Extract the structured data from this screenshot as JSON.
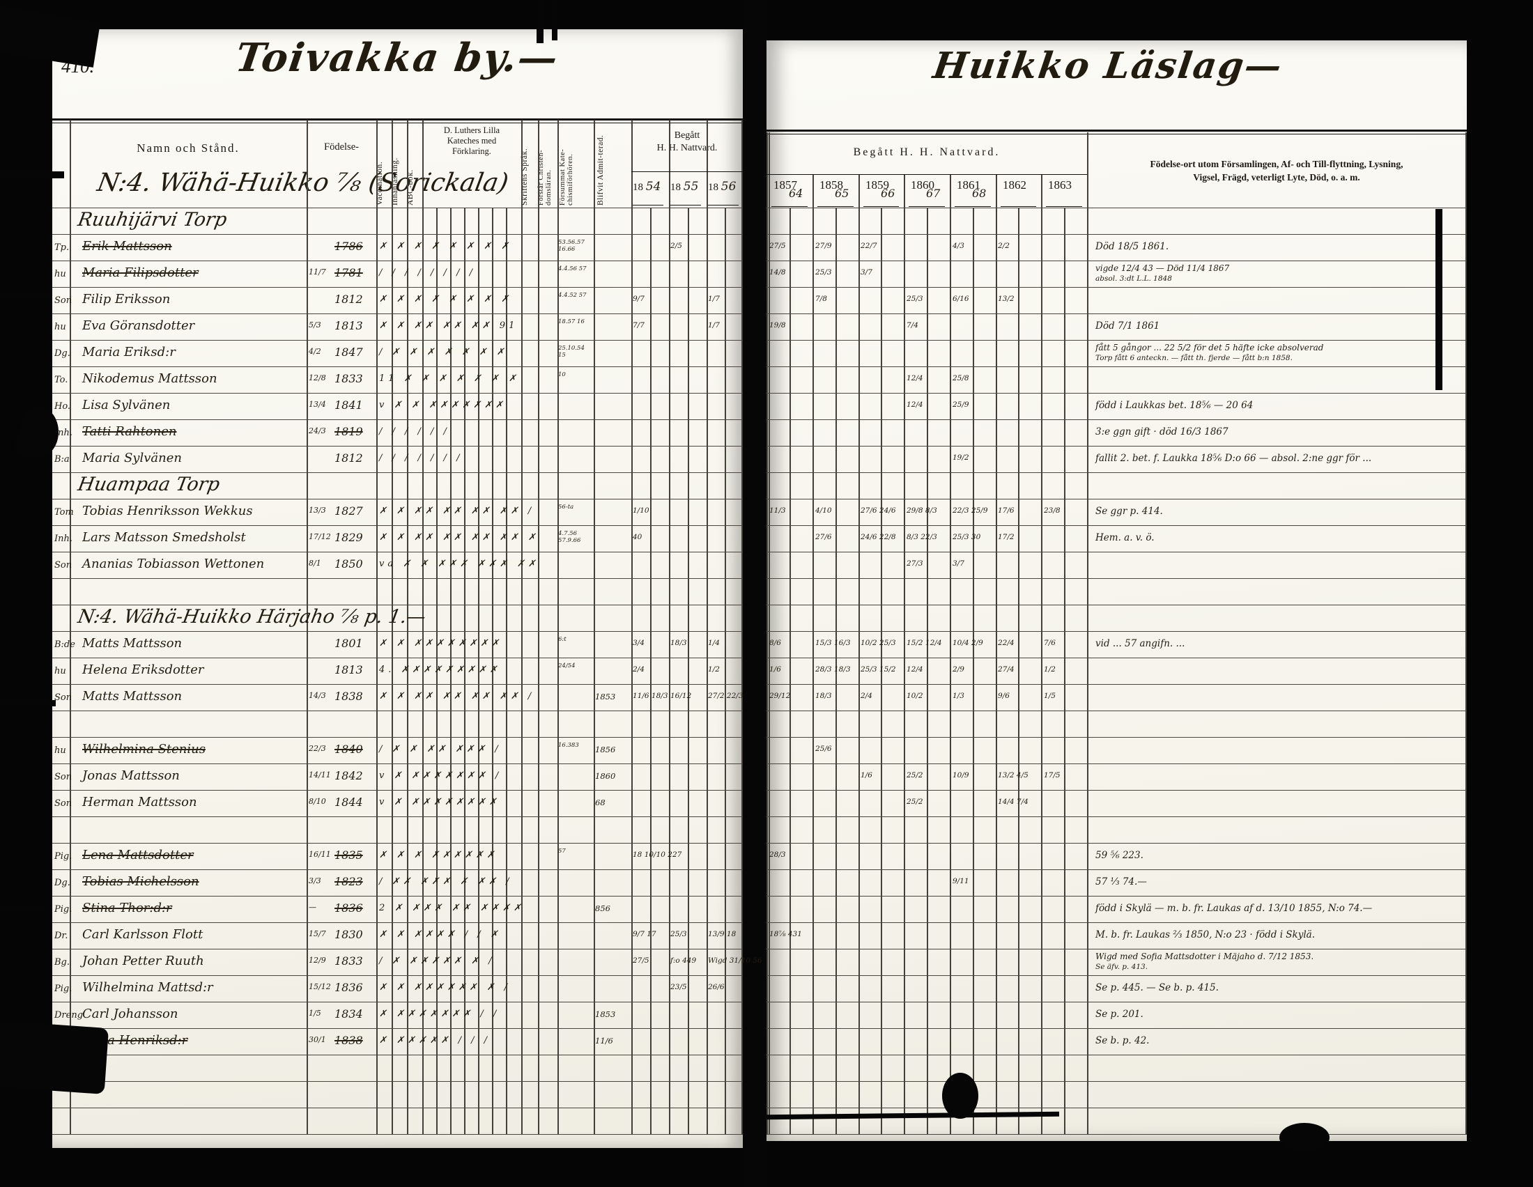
{
  "scan": {
    "page_number": "410.",
    "left_title": "Toivakka by.—",
    "right_title": "Huikko Läslag—",
    "left_section_title": "N:4. Wähä-Huikko ⅞ (Sorickala)"
  },
  "headers": {
    "left": {
      "name": "Namn och Stånd.",
      "birth": "Födelse-",
      "vertical": [
        "Vaccination.",
        "Innanläsning.",
        "ABC-bok."
      ],
      "catechism_lines": [
        "D. Luthers Lilla",
        "Kateches med",
        "Förklaring."
      ],
      "vertical2": [
        "Skriftens Språk.",
        "Förstår Christen-domsläran.",
        "Försummat Kate-chismiförhören.",
        "Blifvit Admit-terad."
      ],
      "communion_line1": "Begått",
      "communion_line2": "H. H. Nattvard.",
      "years": [
        {
          "printed": "18",
          "written": "54"
        },
        {
          "printed": "18",
          "written": "55"
        },
        {
          "printed": "18",
          "written": "56"
        }
      ]
    },
    "right": {
      "communion": "Begått  H.  H.  Nattvard.",
      "years": [
        {
          "printed": "1857",
          "written": "64"
        },
        {
          "printed": "1858",
          "written": "65"
        },
        {
          "printed": "1859",
          "written": "66"
        },
        {
          "printed": "1860",
          "written": "67"
        },
        {
          "printed": "1861",
          "written": "68"
        },
        {
          "printed": "1862",
          "written": ""
        },
        {
          "printed": "1863",
          "written": ""
        }
      ],
      "notes_line1": "Födelse-ort utom Församlingen, Af- och Till-flyttning, Lysning,",
      "notes_line2": "Vigsel, Frägd, veterligt Lyte, Död, o. a. m."
    }
  },
  "rows": [
    {
      "type": "section",
      "text": "Ruuhijärvi Torp"
    },
    {
      "type": "person",
      "prefix": "Tp.",
      "name": "Erik Mattsson",
      "struck": true,
      "by": "1786",
      "marks": "✗ ✗ ✗ ✗ ✗ ✗ ✗ ✗",
      "fors": "53.56.57 16.66",
      "n55": "2/5",
      "natt": [
        "27/5",
        "27/9",
        "22/7",
        "",
        "4/3",
        "2/2",
        ""
      ],
      "note": "Död 18/5 1861."
    },
    {
      "type": "person",
      "prefix": "hu",
      "name": "Maria Filipsdotter",
      "struck": true,
      "bd": "11/7",
      "by": "1781",
      "marks": "/ / / / / / / /",
      "fors": "4.4.56 57",
      "natt": [
        "14/8",
        "25/3",
        "3/7",
        "",
        "",
        "",
        ""
      ],
      "note": "vigde 12/4 43 — Död 11/4 1867",
      "note2": "absol. 3:dt L.L. 1848"
    },
    {
      "type": "person",
      "prefix": "Son",
      "name": "Filip Eriksson",
      "by": "1812",
      "marks": "✗ ✗ ✗ ✗ ✗ ✗ ✗ ✗",
      "fors": "4.4.52 57",
      "n54": "9/7",
      "n56": "1/7",
      "natt": [
        "",
        "7/8",
        "",
        "25/3",
        "6/16",
        "13/2",
        ""
      ]
    },
    {
      "type": "person",
      "prefix": "hu",
      "name": "Eva Göransdotter",
      "bd": "5/3",
      "by": "1813",
      "marks": "✗ ✗ ✗✗ ✗✗ ✗✗ 91",
      "fors": "18.57 16",
      "n54": "7/7",
      "n56": "1/7",
      "natt": [
        "19/8",
        "",
        "",
        "7/4",
        "",
        "",
        ""
      ],
      "note": "Död 7/1 1861"
    },
    {
      "type": "person",
      "prefix": "Dg.",
      "name": "Maria Eriksd:r",
      "bd": "4/2",
      "by": "1847",
      "marks": "/ ✗ ✗ ✗ ✗ ✗ ✗ ✗",
      "fors": "25.10.54 15",
      "note": "fått 5 gångor ... 22 5/2 för det 5 häfte icke absolverad",
      "note2": "Torp fått 6 anteckn. — fått th. fjerde — fått b:n 1858."
    },
    {
      "type": "person",
      "prefix": "To.",
      "name": "Nikodemus Mattsson",
      "bd": "12/8",
      "by": "1833",
      "marks": "11 ✗ ✗ ✗ ✗ ✗ ✗ ✗",
      "fors": "10",
      "natt": [
        "",
        "",
        "",
        "12/4",
        "25/8",
        "",
        ""
      ]
    },
    {
      "type": "person",
      "prefix": "Ho.",
      "name": "Lisa Sylvänen",
      "bd": "13/4",
      "by": "1841",
      "marks": "v ✗ ✗ ✗✗✗✗✗✗✗",
      "natt": [
        "",
        "",
        "",
        "12/4",
        "25/9",
        "",
        ""
      ],
      "note": "född i Laukkas bet. 18⅚ — 20 64"
    },
    {
      "type": "person",
      "prefix": "Inh.",
      "name": "Tatti Rahtonen",
      "struck": true,
      "bd": "24/3",
      "by": "1819",
      "marks": "/ / / / / /",
      "note": "3:e ggn gift · död 16/3 1867"
    },
    {
      "type": "person",
      "prefix": "B:a",
      "name": "Maria Sylvänen",
      "by": "1812",
      "marks": "/ / / / / / /",
      "natt": [
        "",
        "",
        "",
        "",
        "19/2",
        "",
        ""
      ],
      "note": "fallit 2. bet. f. Laukka 18⅚ D:o 66 — absol. 2:ne ggr för ..."
    },
    {
      "type": "section",
      "text": "Huampaa Torp"
    },
    {
      "type": "person",
      "prefix": "Tom",
      "name": "Tobias Henriksson Wekkus",
      "bd": "13/3",
      "by": "1827",
      "marks": "✗ ✗ ✗✗ ✗✗ ✗✗ ✗✗ /",
      "fors": "56-ta",
      "n54": "1/10",
      "natt": [
        "11/3",
        "4/10",
        "27/6 24/6",
        "29/8 8/3",
        "22/3 25/9",
        "17/6",
        "23/8"
      ],
      "note": "Se ggr p. 414."
    },
    {
      "type": "person",
      "prefix": "Inh.",
      "name": "Lars Matsson Smedsholst",
      "bd": "17/12",
      "by": "1829",
      "marks": "✗ ✗ ✗✗ ✗✗ ✗✗ ✗✗ ✗",
      "fors": "4.7.56 57.9.66",
      "n54": "40",
      "natt": [
        "",
        "27/6",
        "24/6 22/8",
        "8/3 22/3",
        "25/3 30",
        "17/2",
        ""
      ],
      "note": "Hem. a. v. ö."
    },
    {
      "type": "person",
      "prefix": "Son",
      "name": "Ananias Tobiasson Wettonen",
      "bd": "8/1",
      "by": "1850",
      "marks": "va ✗ ✗ ✗✗✗ ✗✗✗ ✗✗",
      "natt": [
        "",
        "",
        "",
        "27/3",
        "3/7",
        "",
        ""
      ]
    },
    {
      "type": "blank"
    },
    {
      "type": "section",
      "text": "N:4. Wähä-Huikko Härjaho ⅞ p. 1.—"
    },
    {
      "type": "person",
      "prefix": "B:de",
      "name": "Matts Mattsson",
      "by": "1801",
      "marks": "✗ ✗ ✗✗✗✗✗✗✗✗",
      "fors": "6:t",
      "n54": "3/4",
      "n55": "18/3",
      "n56": "1/4",
      "natt": [
        "8/6",
        "15/3 16/3",
        "10/2 25/3",
        "15/2 12/4",
        "10/4 2/9",
        "22/4",
        "7/6"
      ],
      "note": "vid ... 57 angifn. ..."
    },
    {
      "type": "person",
      "prefix": "hu",
      "name": "Helena Eriksdotter",
      "by": "1813",
      "marks": "4. ✗✗✗✗✗✗✗✗✗",
      "fors": "24/54",
      "n54": "2/4",
      "n56": "1/2",
      "natt": [
        "1/6",
        "28/3 18/3",
        "25/3 15/2",
        "12/4",
        "2/9",
        "27/4",
        "1/2"
      ]
    },
    {
      "type": "person",
      "prefix": "Son",
      "name": "Matts Mattsson",
      "bd": "14/3",
      "by": "1838",
      "marks": "✗ ✗ ✗✗ ✗✗ ✗✗ ✗✗ /",
      "adm": "1853",
      "n54": "11/6 18/3",
      "n55": "16/12",
      "n56": "27/2 22/3",
      "natt": [
        "29/12",
        "18/3",
        "2/4",
        "10/2",
        "1/3",
        "9/6",
        "1/5"
      ]
    },
    {
      "type": "blank"
    },
    {
      "type": "person",
      "prefix": "hu",
      "name": "Wilhelmina Stenius",
      "struck": true,
      "bd": "22/3",
      "by": "1840",
      "marks": "/ ✗ ✗ ✗✗ ✗✗✗ /",
      "fors": "16.383",
      "adm": "1856",
      "natt": [
        "",
        "25/6",
        "",
        "",
        "",
        "",
        ""
      ]
    },
    {
      "type": "person",
      "prefix": "Son",
      "name": "Jonas Mattsson",
      "bd": "14/11",
      "by": "1842",
      "marks": "v ✗ ✗✗✗✗✗✗✗ /",
      "adm": "1860",
      "natt": [
        "",
        "",
        "1/6",
        "25/2",
        "10/9",
        "13/2 4/5",
        "17/5"
      ]
    },
    {
      "type": "person",
      "prefix": "Son",
      "name": "Herman Mattsson",
      "bd": "8/10",
      "by": "1844",
      "marks": "v ✗ ✗✗✗✗✗✗✗✗",
      "adm": "68",
      "natt": [
        "",
        "",
        "",
        "25/2",
        "",
        "14/4 7/4",
        ""
      ]
    },
    {
      "type": "blank"
    },
    {
      "type": "person",
      "prefix": "Pig.",
      "name": "Lena Mattsdotter",
      "struck": true,
      "bd": "16/11",
      "by": "1835",
      "marks": "✗ ✗ ✗ ✗✗✗✗✗✗",
      "fors": "57",
      "n54": "18 10/10 227",
      "natt": [
        "28/3",
        "",
        "",
        "",
        "",
        "",
        ""
      ],
      "note": "59 ⅚ 223."
    },
    {
      "type": "person",
      "prefix": "Dg.",
      "name": "Tobias Michelsson",
      "struck": true,
      "bd": "3/3",
      "by": "1823",
      "marks": "/ ✗✗ ✗✗✗ ✗ ✗✗ /",
      "natt": [
        "",
        "",
        "",
        "",
        "9/11",
        "",
        ""
      ],
      "note": "57 ⅓ 74.—"
    },
    {
      "type": "person",
      "prefix": "Pig.",
      "name": "Stina Thor:d:r",
      "struck": true,
      "bd": "—",
      "by": "1836",
      "marks": "2 ✗ ✗✗✗ ✗✗ ✗✗✗✗",
      "adm": "856",
      "note": "född i Skylä — m. b. fr. Laukas af d. 13/10 1855, N:o 74.—"
    },
    {
      "type": "person",
      "prefix": "Dr.",
      "name": "Carl Karlsson Flott",
      "bd": "15/7",
      "by": "1830",
      "marks": "✗ ✗ ✗✗✗✗ / / ✗",
      "n54": "9/7 17",
      "n55": "25/3",
      "n56": "13/9 18",
      "natt": [
        "18⅞ 431",
        "",
        "",
        "",
        "",
        "",
        ""
      ],
      "note": "M. b. fr. Laukas ⅔ 1850, N:o 23 · född i Skylä."
    },
    {
      "type": "person",
      "prefix": "Bg.",
      "name": "Johan Petter Ruuth",
      "bd": "12/9",
      "by": "1833",
      "marks": "/ ✗ ✗✗✗✗✗ ✗ /",
      "n54": "27/5",
      "n55": "f:o 449",
      "n56": "Wigd 31/10 56",
      "note": "Wigd med Sofia Mattsdotter i Mäjaho d. 7/12 1853.",
      "note2": "Se äfv. p. 413."
    },
    {
      "type": "person",
      "prefix": "Pig.",
      "name": "Wilhelmina Mattsd:r",
      "bd": "15/12",
      "by": "1836",
      "marks": "✗ ✗ ✗✗✗✗✗✗ ✗ /",
      "n55": "23/5",
      "n56": "26/6",
      "note": "Se p. 445. — Se b. p. 415."
    },
    {
      "type": "person",
      "prefix": "Dreng",
      "name": "Carl Johansson",
      "bd": "1/5",
      "by": "1834",
      "marks": "✗ ✗✗✗✗✗✗✗ / /",
      "adm": "1853",
      "note": "Se p. 201."
    },
    {
      "type": "person",
      "prefix": "Pig.",
      "name": "Anna Henriksd:r",
      "struck": true,
      "bd": "30/1",
      "by": "1838",
      "marks": "✗ ✗✗✗✗✗ / / /",
      "adm": "11/6",
      "note": "Se b. p. 42."
    },
    {
      "type": "blank"
    },
    {
      "type": "blank"
    },
    {
      "type": "blank"
    }
  ]
}
